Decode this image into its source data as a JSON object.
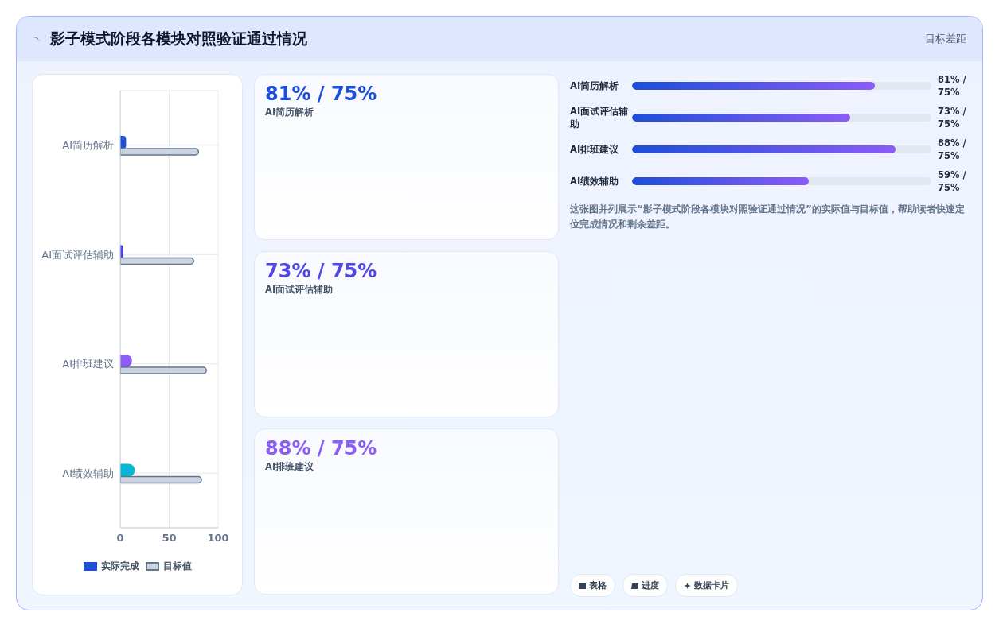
{
  "chart_data": [
    {
      "type": "bar",
      "orientation": "horizontal",
      "title": "影子模式阶段各模块对照验证通过情况",
      "annotations": [
        "目标差距"
      ],
      "categories": [
        "AI简历解析",
        "AI面试评估辅助",
        "AI排班建议",
        "AI绩效辅助"
      ],
      "series": [
        {
          "name": "实际完成",
          "colors": [
            "#1d4ed8",
            "#4f46e5",
            "#8b5cf6",
            "#06b6d4"
          ],
          "values": [
            6,
            3,
            12,
            15
          ]
        },
        {
          "name": "目标值",
          "color": "#cbd5e1",
          "values": [
            80,
            75,
            88,
            83
          ]
        }
      ],
      "xlim": [
        0,
        100
      ],
      "xticks": [
        0,
        50,
        100
      ],
      "grid": true,
      "legend": "bottom"
    },
    {
      "type": "other",
      "colors": [
        "#1d4ed8",
        "#4f46e5",
        "#8b5cf6"
      ],
      "annotations": [
        "81% / 75%",
        "AI简历解析",
        "73% / 75%",
        "AI面试评估辅助",
        "88% / 75%",
        "AI排班建议"
      ]
    },
    {
      "type": "other",
      "annotations": [
        "AI简历解析",
        "81% / 75%",
        "AI面试评估辅助",
        "73% / 75%",
        "AI排班建议",
        "88% / 75%",
        "AI绩效辅助",
        "59% / 75%",
        "这张图并列展示“影子模式阶段各模块对照验证通过情况”的实际值与目标值，帮助读者快速定位完成情况和剩余差距。",
        "表格",
        "进度",
        "数据卡片"
      ]
    }
  ]
}
